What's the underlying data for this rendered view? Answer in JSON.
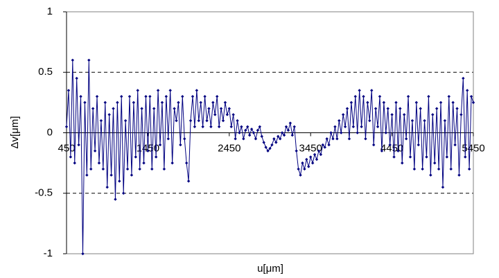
{
  "chart_data": {
    "type": "line",
    "x_label": "u[μm]",
    "y_label": "Δv[μm]",
    "xlim": [
      450,
      5450
    ],
    "xticks": [
      450,
      1450,
      2450,
      3450,
      4450,
      5450
    ],
    "ylim": [
      -1,
      1
    ],
    "yticks": [
      -1,
      -0.5,
      0,
      0.5,
      1
    ],
    "grid": true,
    "series": [
      {
        "color": "#000080",
        "x": [
          450,
          475,
          500,
          525,
          550,
          575,
          600,
          625,
          650,
          675,
          700,
          725,
          750,
          775,
          800,
          825,
          850,
          875,
          900,
          925,
          950,
          975,
          1000,
          1025,
          1050,
          1075,
          1100,
          1125,
          1150,
          1175,
          1200,
          1225,
          1250,
          1275,
          1300,
          1325,
          1350,
          1375,
          1400,
          1425,
          1450,
          1475,
          1500,
          1525,
          1550,
          1575,
          1600,
          1625,
          1650,
          1675,
          1700,
          1725,
          1750,
          1775,
          1800,
          1825,
          1850,
          1875,
          1900,
          1925,
          1950,
          1975,
          2000,
          2025,
          2050,
          2075,
          2100,
          2125,
          2150,
          2175,
          2200,
          2225,
          2250,
          2275,
          2300,
          2325,
          2350,
          2375,
          2400,
          2425,
          2450,
          2475,
          2500,
          2525,
          2550,
          2575,
          2600,
          2625,
          2650,
          2675,
          2700,
          2725,
          2750,
          2775,
          2800,
          2825,
          2850,
          2875,
          2900,
          2925,
          2950,
          2975,
          3000,
          3025,
          3050,
          3075,
          3100,
          3125,
          3150,
          3175,
          3200,
          3225,
          3250,
          3275,
          3300,
          3325,
          3350,
          3375,
          3400,
          3425,
          3450,
          3475,
          3500,
          3525,
          3550,
          3575,
          3600,
          3625,
          3650,
          3675,
          3700,
          3725,
          3750,
          3775,
          3800,
          3825,
          3850,
          3875,
          3900,
          3925,
          3950,
          3975,
          4000,
          4025,
          4050,
          4075,
          4100,
          4125,
          4150,
          4175,
          4200,
          4225,
          4250,
          4275,
          4300,
          4325,
          4350,
          4375,
          4400,
          4425,
          4450,
          4475,
          4500,
          4525,
          4550,
          4575,
          4600,
          4625,
          4650,
          4675,
          4700,
          4725,
          4750,
          4775,
          4800,
          4825,
          4850,
          4875,
          4900,
          4925,
          4950,
          4975,
          5000,
          5025,
          5050,
          5075,
          5100,
          5125,
          5150,
          5175,
          5200,
          5225,
          5250,
          5275,
          5300,
          5325,
          5350,
          5375,
          5400,
          5425,
          5450
        ],
        "values": [
          0.05,
          0.35,
          -0.2,
          0.6,
          -0.25,
          0.45,
          -0.1,
          0.3,
          -1,
          0.25,
          -0.35,
          0.6,
          -0.3,
          0.2,
          -0.15,
          0.3,
          -0.25,
          0.1,
          -0.3,
          0.25,
          -0.45,
          0.15,
          -0.35,
          0.2,
          -0.55,
          0.25,
          -0.4,
          0.3,
          -0.5,
          0.1,
          -0.3,
          0.3,
          -0.35,
          0.25,
          -0.2,
          0.35,
          -0.3,
          0.2,
          -0.25,
          0.3,
          -0.15,
          0.3,
          -0.3,
          0.2,
          -0.2,
          0.35,
          -0.1,
          0.25,
          -0.3,
          0.3,
          -0.05,
          0.35,
          -0.25,
          0.2,
          0.1,
          0.25,
          -0.1,
          0.3,
          -0.05,
          -0.25,
          -0.4,
          0.1,
          0.3,
          0.05,
          0.35,
          0.1,
          0.25,
          0.05,
          0.3,
          0.1,
          0.2,
          0.05,
          0.25,
          0.15,
          0.3,
          0.05,
          0.2,
          0.1,
          0.25,
          0.15,
          0.2,
          0.05,
          0.15,
          -0.05,
          0.1,
          0,
          0.05,
          -0.05,
          0.02,
          0.05,
          -0.02,
          0.03,
          0,
          -0.05,
          0.02,
          0.05,
          -0.03,
          -0.08,
          -0.12,
          -0.15,
          -0.13,
          -0.1,
          -0.05,
          -0.08,
          -0.03,
          -0.05,
          0,
          -0.02,
          0.05,
          0.02,
          0.08,
          -0.02,
          0.05,
          -0.15,
          -0.3,
          -0.35,
          -0.25,
          -0.3,
          -0.22,
          -0.28,
          -0.2,
          -0.25,
          -0.18,
          -0.22,
          -0.15,
          -0.18,
          -0.1,
          -0.12,
          -0.05,
          -0.1,
          0,
          -0.05,
          0.05,
          -0.05,
          0.1,
          0,
          0.15,
          0.05,
          0.2,
          -0.05,
          0.25,
          0.05,
          0.3,
          0,
          0.35,
          0.05,
          0.3,
          -0.05,
          0.25,
          0.1,
          0.35,
          -0.1,
          0.2,
          0.05,
          0.3,
          -0.15,
          0.25,
          0,
          0.2,
          -0.1,
          0.15,
          -0.2,
          0.25,
          -0.15,
          0.2,
          -0.25,
          0.15,
          -0.05,
          0.3,
          -0.2,
          0.1,
          -0.3,
          0.25,
          -0.1,
          0.2,
          -0.3,
          0.1,
          -0.2,
          0.3,
          -0.35,
          0.15,
          -0.25,
          0.2,
          -0.3,
          0.25,
          -0.45,
          0.1,
          -0.2,
          0.3,
          -0.3,
          0.25,
          -0.1,
          0.2,
          -0.35,
          0.15,
          0.45,
          -0.2,
          0.35,
          -0.3,
          0.3,
          0.25
        ]
      }
    ]
  }
}
